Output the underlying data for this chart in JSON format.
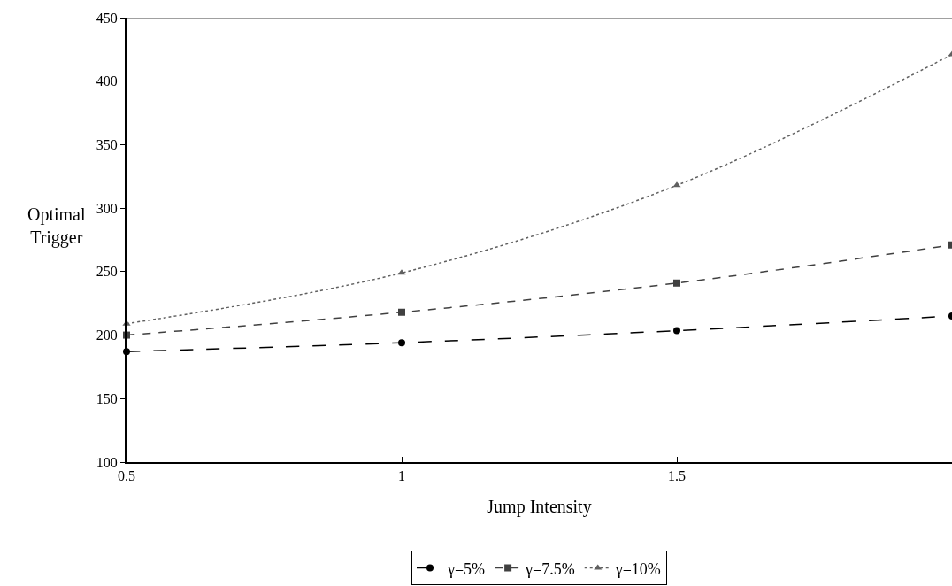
{
  "chart_data": {
    "type": "line",
    "xlabel": "Jump Intensity",
    "ylabel": "Optimal Trigger",
    "x": [
      0.5,
      1,
      1.5,
      2
    ],
    "series": [
      {
        "name": "γ=5%",
        "color": "#000000",
        "values": [
          187,
          194,
          203.5,
          215
        ],
        "marker": "circle",
        "line_style": "longdash"
      },
      {
        "name": "γ=7.5%",
        "color": "#404040",
        "values": [
          200,
          218,
          241,
          271
        ],
        "marker": "square",
        "line_style": "dashed"
      },
      {
        "name": "γ=10%",
        "color": "#606060",
        "values": [
          209,
          249,
          318,
          421
        ],
        "marker": "triangle",
        "line_style": "dotted"
      }
    ],
    "xlim": [
      0.5,
      2
    ],
    "xticks": [
      0.5,
      1,
      1.5
    ],
    "ylim": [
      100,
      450
    ],
    "yticks": [
      100,
      150,
      200,
      250,
      300,
      350,
      400,
      450
    ],
    "grid": false,
    "legend": "bottom"
  }
}
